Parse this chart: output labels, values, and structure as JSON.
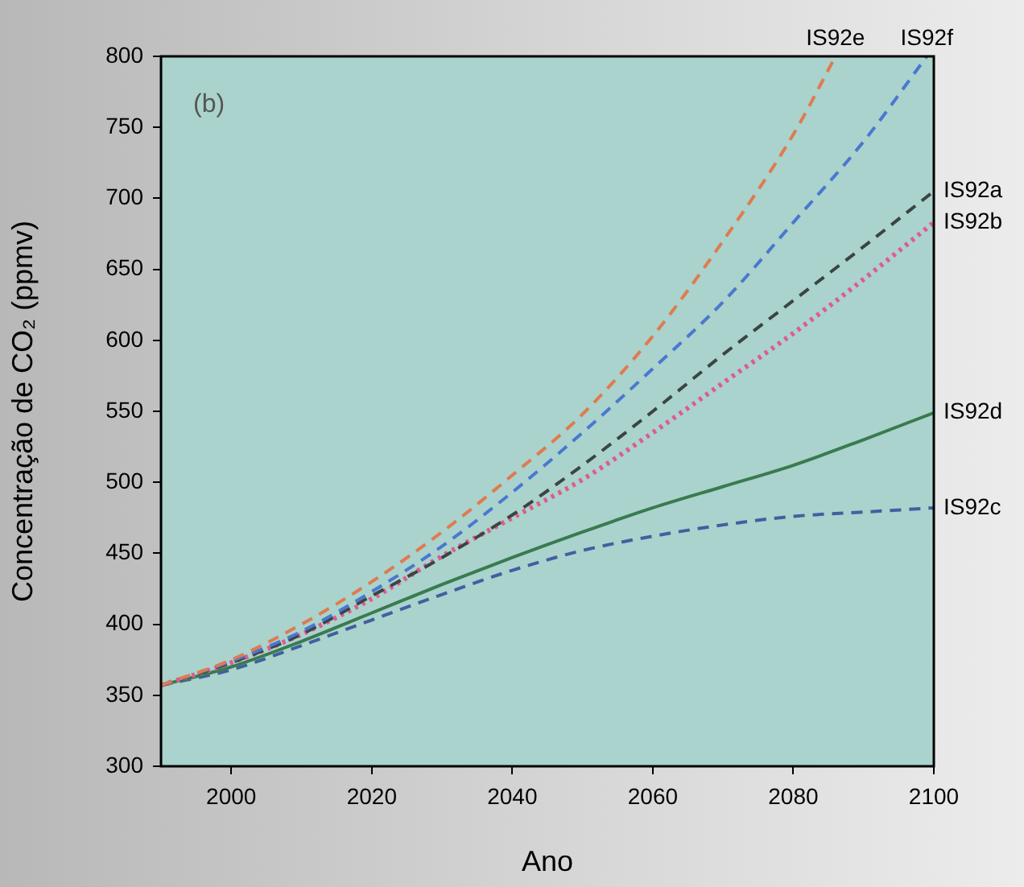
{
  "chart_data": {
    "type": "line",
    "xlabel": "Ano",
    "ylabel": "Concentração de CO₂ (ppmv)",
    "annotations": [
      "(b)"
    ],
    "xlim": [
      1990,
      2100
    ],
    "xticks": [
      2000,
      2020,
      2040,
      2060,
      2080,
      2100
    ],
    "ylim": [
      300,
      800
    ],
    "yticks": [
      300,
      350,
      400,
      450,
      500,
      550,
      600,
      650,
      700,
      750,
      800
    ],
    "grid": false,
    "legend": false,
    "marker": "none",
    "series": [
      {
        "name": "IS92e",
        "color": "#e07a50",
        "line_style": "dashed",
        "x": [
          1990,
          2000,
          2010,
          2020,
          2030,
          2040,
          2050,
          2060,
          2070,
          2080,
          2086
        ],
        "values": [
          357,
          375,
          400,
          430,
          465,
          505,
          548,
          603,
          670,
          745,
          800
        ]
      },
      {
        "name": "IS92f",
        "color": "#4a78d0",
        "line_style": "dashed",
        "x": [
          1990,
          2000,
          2010,
          2020,
          2030,
          2040,
          2050,
          2060,
          2070,
          2080,
          2090,
          2099
        ],
        "values": [
          357,
          374,
          395,
          423,
          455,
          493,
          535,
          580,
          627,
          683,
          740,
          800
        ]
      },
      {
        "name": "IS92a",
        "color": "#3c4444",
        "line_style": "dashed",
        "x": [
          1990,
          2000,
          2010,
          2020,
          2030,
          2040,
          2050,
          2060,
          2070,
          2080,
          2090,
          2100
        ],
        "values": [
          357,
          373,
          393,
          420,
          447,
          477,
          512,
          550,
          590,
          628,
          666,
          705
        ]
      },
      {
        "name": "IS92b",
        "color": "#e05a90",
        "line_style": "dotted",
        "x": [
          1990,
          2000,
          2010,
          2020,
          2030,
          2040,
          2050,
          2060,
          2070,
          2080,
          2090,
          2100
        ],
        "values": [
          357,
          373,
          393,
          418,
          448,
          475,
          502,
          535,
          570,
          605,
          643,
          683
        ]
      },
      {
        "name": "IS92d",
        "color": "#3a7a50",
        "line_style": "solid",
        "x": [
          1990,
          2000,
          2010,
          2020,
          2030,
          2040,
          2050,
          2060,
          2070,
          2080,
          2090,
          2100
        ],
        "values": [
          357,
          370,
          388,
          408,
          428,
          447,
          465,
          482,
          497,
          512,
          530,
          549
        ]
      },
      {
        "name": "IS92c",
        "color": "#4060a0",
        "line_style": "dashed",
        "x": [
          1990,
          2000,
          2010,
          2020,
          2030,
          2040,
          2050,
          2060,
          2070,
          2080,
          2090,
          2100
        ],
        "values": [
          357,
          368,
          385,
          403,
          421,
          438,
          452,
          462,
          470,
          476,
          479,
          482
        ]
      }
    ]
  }
}
